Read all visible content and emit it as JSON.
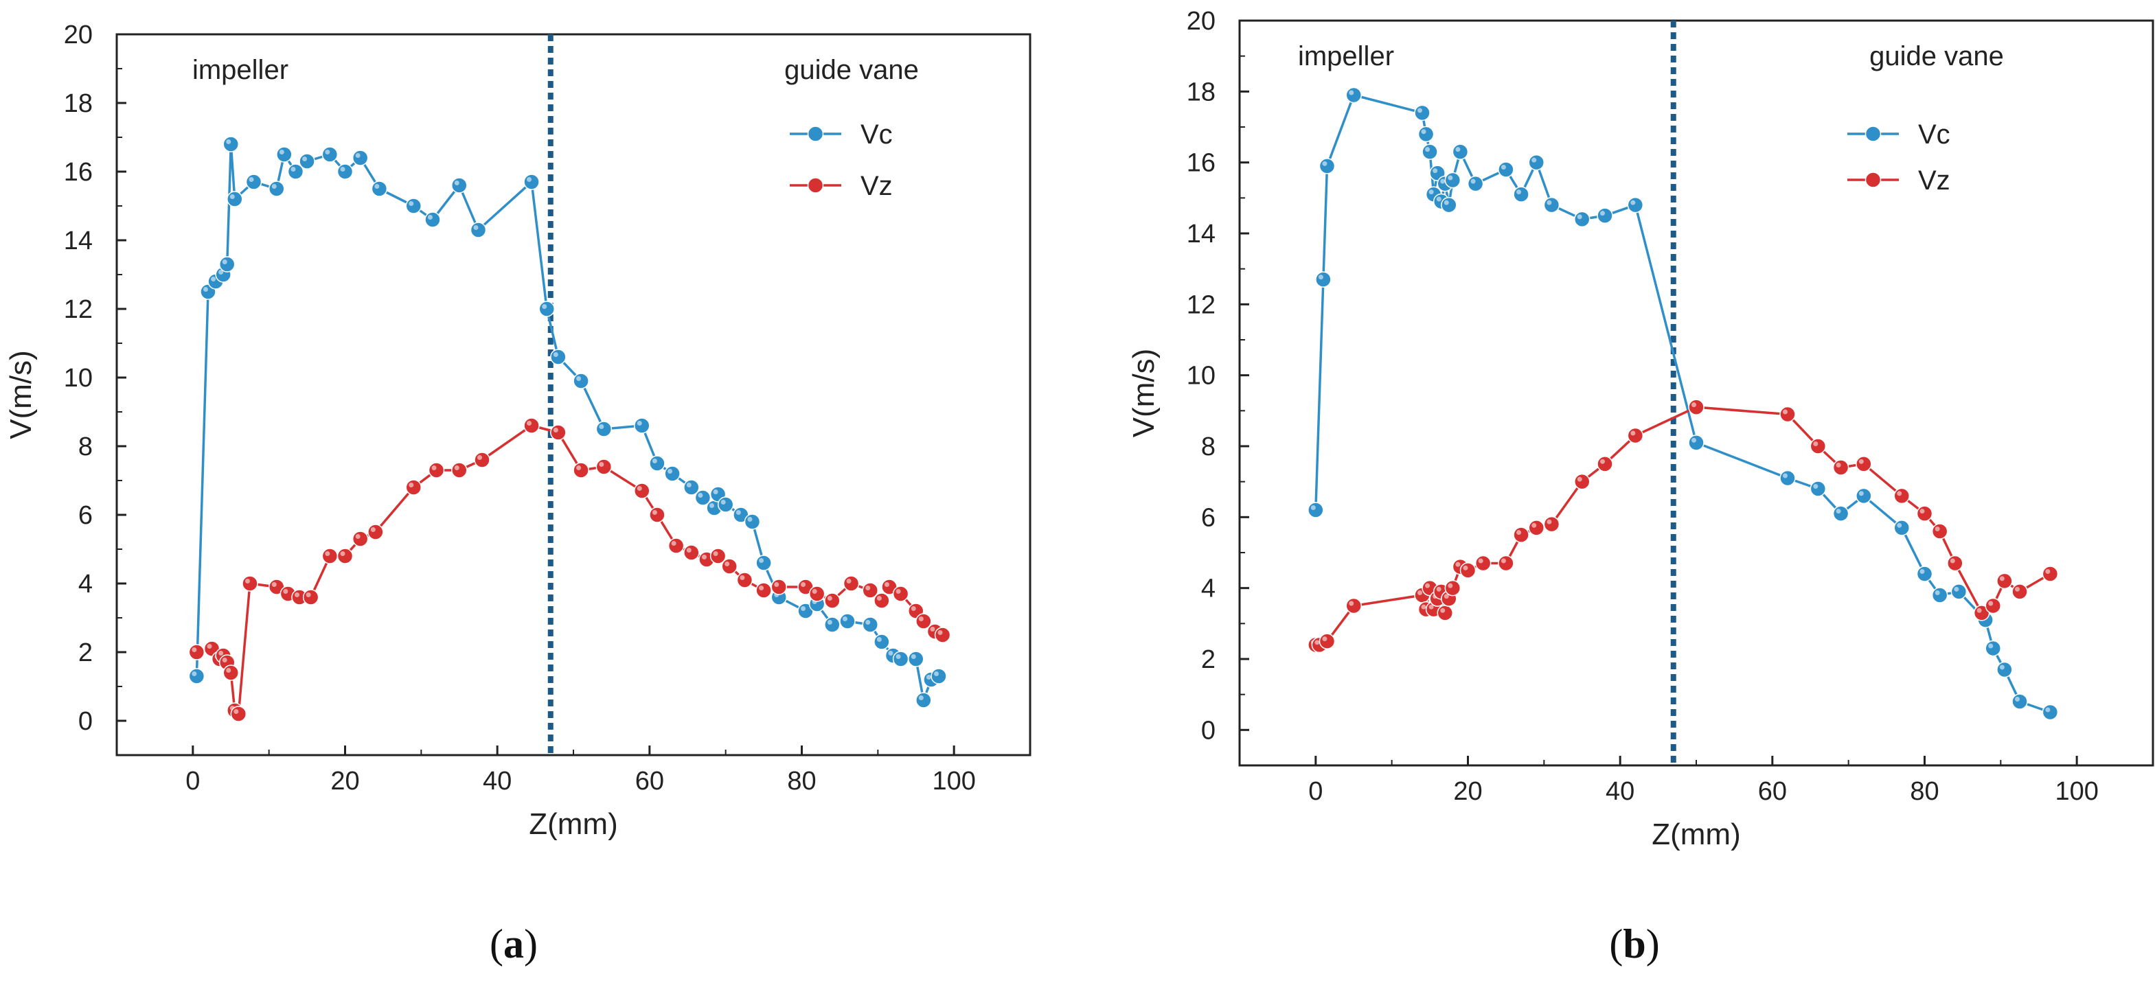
{
  "chart_data": [
    {
      "type": "line",
      "panel": "a",
      "panel_label_open": "(",
      "panel_label_letter": "a",
      "panel_label_close": ")",
      "xlabel": "Z(mm)",
      "ylabel": "V(m/s)",
      "xlim": [
        -10,
        110
      ],
      "ylim": [
        -1,
        20
      ],
      "xticks": [
        0,
        20,
        40,
        60,
        80,
        100
      ],
      "yticks": [
        0,
        2,
        4,
        6,
        8,
        10,
        12,
        14,
        16,
        18,
        20
      ],
      "divider_x": 47,
      "regions": [
        {
          "name": "impeller",
          "label": "impeller"
        },
        {
          "name": "guide-vane",
          "label": "guide vane"
        }
      ],
      "legend_position": "top-right",
      "series": [
        {
          "name": "Vc",
          "color": "#2f8fc9",
          "x": [
            0.5,
            2,
            3,
            4,
            4.5,
            5,
            5.5,
            8,
            11,
            12,
            13.5,
            15,
            18,
            20,
            22,
            24.5,
            29,
            31.5,
            35,
            37.5,
            44.5,
            46.5,
            48,
            51,
            54,
            59,
            61,
            63,
            65.5,
            67,
            68.5,
            69,
            70,
            72,
            73.5,
            75,
            77,
            80.5,
            82,
            84,
            86,
            89,
            90.5,
            92,
            93,
            95,
            96,
            97,
            98
          ],
          "values": [
            1.3,
            12.5,
            12.8,
            13.0,
            13.3,
            16.8,
            15.2,
            15.7,
            15.5,
            16.5,
            16.0,
            16.3,
            16.5,
            16.0,
            16.4,
            15.5,
            15.0,
            14.6,
            15.6,
            14.3,
            15.7,
            12.0,
            10.6,
            9.9,
            8.5,
            8.6,
            7.5,
            7.2,
            6.8,
            6.5,
            6.2,
            6.6,
            6.3,
            6.0,
            5.8,
            4.6,
            3.6,
            3.2,
            3.4,
            2.8,
            2.9,
            2.8,
            2.3,
            1.9,
            1.8,
            1.8,
            0.6,
            1.2,
            1.3
          ]
        },
        {
          "name": "Vz",
          "color": "#d63030",
          "x": [
            0.5,
            2.5,
            3.5,
            4,
            4.5,
            5,
            5.5,
            6,
            7.5,
            11,
            12.5,
            14,
            15.5,
            18,
            20,
            22,
            24,
            29,
            32,
            35,
            38,
            44.5,
            48,
            51,
            54,
            59,
            61,
            63.5,
            65.5,
            67.5,
            69,
            70.5,
            72.5,
            75,
            77,
            80.5,
            82,
            84,
            86.5,
            89,
            90.5,
            91.5,
            93,
            95,
            96,
            97.5,
            98.5
          ],
          "values": [
            2.0,
            2.1,
            1.8,
            1.9,
            1.7,
            1.4,
            0.3,
            0.2,
            4.0,
            3.9,
            3.7,
            3.6,
            3.6,
            4.8,
            4.8,
            5.3,
            5.5,
            6.8,
            7.3,
            7.3,
            7.6,
            8.6,
            8.4,
            7.3,
            7.4,
            6.7,
            6.0,
            5.1,
            4.9,
            4.7,
            4.8,
            4.5,
            4.1,
            3.8,
            3.9,
            3.9,
            3.7,
            3.5,
            4.0,
            3.8,
            3.5,
            3.9,
            3.7,
            3.2,
            2.9,
            2.6,
            2.5
          ]
        }
      ]
    },
    {
      "type": "line",
      "panel": "b",
      "panel_label_open": "(",
      "panel_label_letter": "b",
      "panel_label_close": ")",
      "xlabel": "Z(mm)",
      "ylabel": "V(m/s)",
      "xlim": [
        -10,
        110
      ],
      "ylim": [
        -1,
        20
      ],
      "xticks": [
        0,
        20,
        40,
        60,
        80,
        100
      ],
      "yticks": [
        0,
        2,
        4,
        6,
        8,
        10,
        12,
        14,
        16,
        18,
        20
      ],
      "divider_x": 47,
      "regions": [
        {
          "name": "impeller",
          "label": "impeller"
        },
        {
          "name": "guide-vane",
          "label": "guide vane"
        }
      ],
      "legend_position": "top-right",
      "series": [
        {
          "name": "Vc",
          "color": "#2f8fc9",
          "x": [
            0,
            1,
            1.5,
            5,
            14,
            14.5,
            15,
            15.5,
            16,
            16.5,
            17,
            17.5,
            18,
            19,
            21,
            25,
            27,
            29,
            31,
            35,
            38,
            42,
            50,
            62,
            66,
            69,
            72,
            77,
            80,
            82,
            84.5,
            88,
            89,
            90.5,
            92.5,
            96.5
          ],
          "values": [
            6.2,
            12.7,
            15.9,
            17.9,
            17.4,
            16.8,
            16.3,
            15.1,
            15.7,
            14.9,
            15.4,
            14.8,
            15.5,
            16.3,
            15.4,
            15.8,
            15.1,
            16.0,
            14.8,
            14.4,
            14.5,
            14.8,
            8.1,
            7.1,
            6.8,
            6.1,
            6.6,
            5.7,
            4.4,
            3.8,
            3.9,
            3.1,
            2.3,
            1.7,
            0.8,
            0.5
          ]
        },
        {
          "name": "Vz",
          "color": "#d63030",
          "x": [
            0,
            0.5,
            1.5,
            5,
            14,
            14.5,
            15,
            15.5,
            16,
            16.5,
            17,
            17.5,
            18,
            19,
            20,
            22,
            25,
            27,
            29,
            31,
            35,
            38,
            42,
            50,
            62,
            66,
            69,
            72,
            77,
            80,
            82,
            84,
            87.5,
            89,
            90.5,
            92.5,
            96.5
          ],
          "values": [
            2.4,
            2.4,
            2.5,
            3.5,
            3.8,
            3.4,
            4.0,
            3.4,
            3.7,
            3.9,
            3.3,
            3.7,
            4.0,
            4.6,
            4.5,
            4.7,
            4.7,
            5.5,
            5.7,
            5.8,
            7.0,
            7.5,
            8.3,
            9.1,
            8.9,
            8.0,
            7.4,
            7.5,
            6.6,
            6.1,
            5.6,
            4.7,
            3.3,
            3.5,
            4.2,
            3.9,
            4.4
          ]
        }
      ]
    }
  ]
}
